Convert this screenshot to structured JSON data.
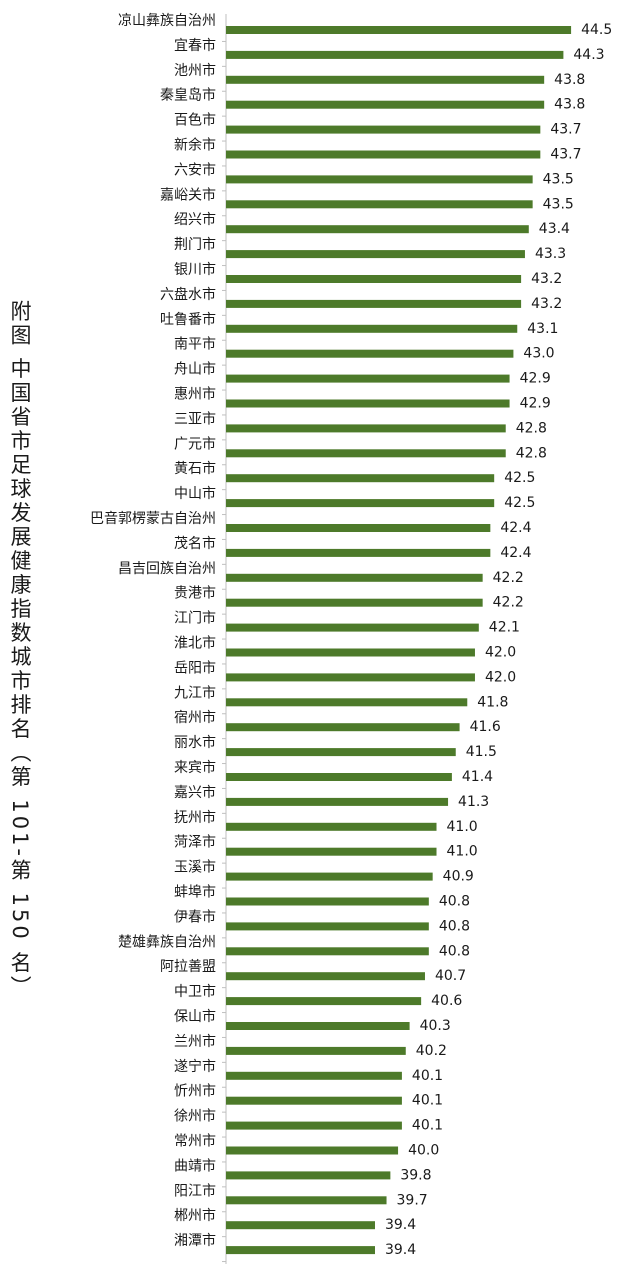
{
  "title": "附图 中国省市足球发展健康指数城市排名（第 101-第 150 名）",
  "chart_data": {
    "type": "bar",
    "orientation": "horizontal",
    "title": "附图 中国省市足球发展健康指数城市排名（第 101-第 150 名）",
    "bar_color": "#4d7a2a",
    "grid": false,
    "categories": [
      "凉山彝族自治州",
      "宜春市",
      "池州市",
      "秦皇岛市",
      "百色市",
      "新余市",
      "六安市",
      "嘉峪关市",
      "绍兴市",
      "荆门市",
      "银川市",
      "六盘水市",
      "吐鲁番市",
      "南平市",
      "舟山市",
      "惠州市",
      "三亚市",
      "广元市",
      "黄石市",
      "中山市",
      "巴音郭楞蒙古自治州",
      "茂名市",
      "昌吉回族自治州",
      "贵港市",
      "江门市",
      "淮北市",
      "岳阳市",
      "九江市",
      "宿州市",
      "丽水市",
      "来宾市",
      "嘉兴市",
      "抚州市",
      "菏泽市",
      "玉溪市",
      "蚌埠市",
      "伊春市",
      "楚雄彝族自治州",
      "阿拉善盟",
      "中卫市",
      "保山市",
      "兰州市",
      "遂宁市",
      "忻州市",
      "徐州市",
      "常州市",
      "曲靖市",
      "阳江市",
      "郴州市",
      "湘潭市"
    ],
    "values": [
      44.5,
      44.3,
      43.8,
      43.8,
      43.7,
      43.7,
      43.5,
      43.5,
      43.4,
      43.3,
      43.2,
      43.2,
      43.1,
      43.0,
      42.9,
      42.9,
      42.8,
      42.8,
      42.5,
      42.5,
      42.4,
      42.4,
      42.2,
      42.2,
      42.1,
      42.0,
      42.0,
      41.8,
      41.6,
      41.5,
      41.4,
      41.3,
      41.0,
      41.0,
      40.9,
      40.8,
      40.8,
      40.8,
      40.7,
      40.6,
      40.3,
      40.2,
      40.1,
      40.1,
      40.1,
      40.0,
      39.8,
      39.7,
      39.4,
      39.4
    ],
    "value_labels": [
      "44.5",
      "44.3",
      "43.8",
      "43.8",
      "43.7",
      "43.7",
      "43.5",
      "43.5",
      "43.4",
      "43.3",
      "43.2",
      "43.2",
      "43.1",
      "43.0",
      "42.9",
      "42.9",
      "42.8",
      "42.8",
      "42.5",
      "42.5",
      "42.4",
      "42.4",
      "42.2",
      "42.2",
      "42.1",
      "42.0",
      "42.0",
      "41.8",
      "41.6",
      "41.5",
      "41.4",
      "41.3",
      "41.0",
      "41.0",
      "40.9",
      "40.8",
      "40.8",
      "40.8",
      "40.7",
      "40.6",
      "40.3",
      "40.2",
      "40.1",
      "40.1",
      "40.1",
      "40.0",
      "39.8",
      "39.7",
      "39.4",
      "39.4"
    ]
  }
}
